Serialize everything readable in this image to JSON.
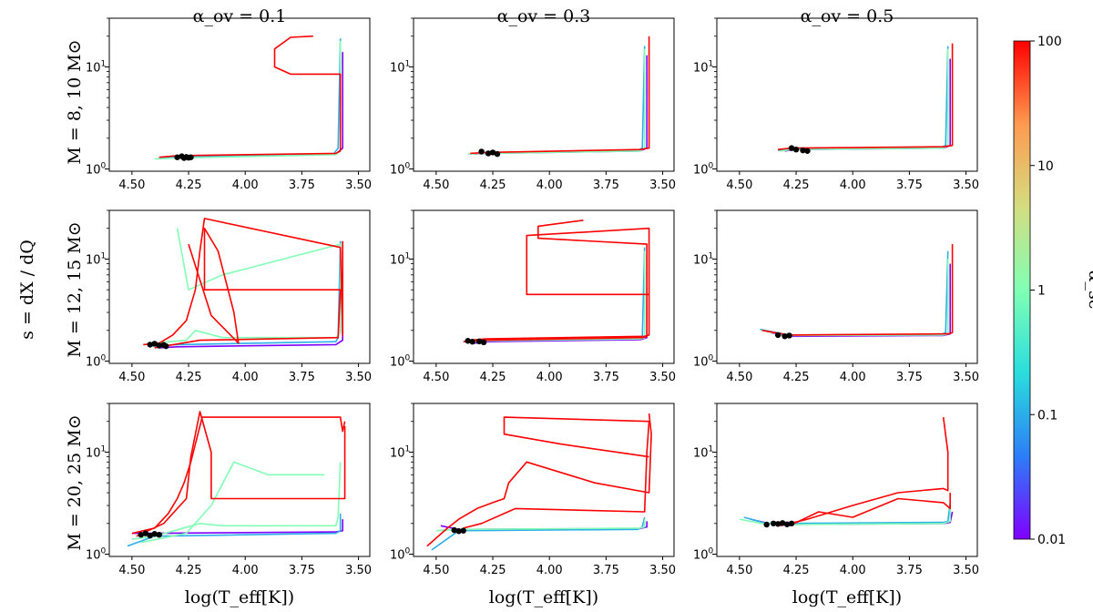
{
  "figure": {
    "column_titles": [
      "α_ov = 0.1",
      "α_ov = 0.3",
      "α_ov = 0.5"
    ],
    "row_labels": [
      "M = 8,  10 M⊙",
      "M = 12,  15 M⊙",
      "M = 20,  25 M⊙"
    ],
    "shared_ylabel": "s = dX / dQ",
    "xlabel": "log(T_eff[K])"
  },
  "colorbar": {
    "label": "α_sc",
    "scale": "log",
    "range": [
      0.01,
      100
    ],
    "ticks": [
      "100",
      "10",
      "1",
      "0.1",
      "0.01"
    ],
    "colors": [
      "#8000ff",
      "#2c7ef7",
      "#2adddd",
      "#80ffb4",
      "#d4dd80",
      "#ff9a4f",
      "#ff0000"
    ]
  },
  "chart_data": {
    "type": "line",
    "xlim": [
      4.6,
      3.45
    ],
    "xticks": [
      "4.50",
      "4.25",
      "4.00",
      "3.75",
      "3.50"
    ],
    "ylim_log": [
      0.95,
      30
    ],
    "yticks": [
      "10^0",
      "10^1"
    ],
    "series_color_key": {
      "red": 100,
      "green": 1,
      "cyan": 0.1,
      "blue": 0.03,
      "violet": 0.01
    },
    "panels": [
      {
        "row": 0,
        "col": 0,
        "series": [
          {
            "alpha_sc": 100,
            "x": [
              4.38,
              4.3,
              3.6,
              3.58,
              3.58,
              3.8,
              3.87,
              3.87,
              3.8,
              3.7
            ],
            "y": [
              1.3,
              1.35,
              1.42,
              1.5,
              8.5,
              8.5,
              10,
              15,
              19.5,
              20
            ]
          },
          {
            "alpha_sc": 1,
            "x": [
              4.4,
              4.3,
              3.6,
              3.58,
              3.58
            ],
            "y": [
              1.25,
              1.28,
              1.38,
              1.5,
              18
            ]
          },
          {
            "alpha_sc": 0.1,
            "x": [
              4.38,
              4.3,
              3.61,
              3.59,
              3.58
            ],
            "y": [
              1.28,
              1.3,
              1.4,
              1.6,
              19
            ]
          },
          {
            "alpha_sc": 0.01,
            "x": [
              4.36,
              4.3,
              3.6,
              3.57,
              3.57
            ],
            "y": [
              1.27,
              1.3,
              1.4,
              1.6,
              14
            ]
          }
        ],
        "endpoints": {
          "x": [
            4.3,
            4.28,
            4.27,
            4.26,
            4.25,
            4.24
          ],
          "y": [
            1.3,
            1.33,
            1.28,
            1.31,
            1.29,
            1.3
          ]
        }
      },
      {
        "row": 0,
        "col": 1,
        "series": [
          {
            "alpha_sc": 100,
            "x": [
              4.35,
              4.28,
              3.6,
              3.56,
              3.56
            ],
            "y": [
              1.42,
              1.45,
              1.55,
              1.6,
              20
            ]
          },
          {
            "alpha_sc": 1,
            "x": [
              4.36,
              4.28,
              3.6,
              3.58,
              3.58
            ],
            "y": [
              1.4,
              1.42,
              1.5,
              1.6,
              15
            ]
          },
          {
            "alpha_sc": 0.1,
            "x": [
              4.34,
              4.28,
              3.61,
              3.59,
              3.58
            ],
            "y": [
              1.42,
              1.44,
              1.52,
              1.6,
              16
            ]
          },
          {
            "alpha_sc": 0.01,
            "x": [
              4.33,
              4.28,
              3.6,
              3.57,
              3.57
            ],
            "y": [
              1.4,
              1.42,
              1.5,
              1.6,
              13
            ]
          }
        ],
        "endpoints": {
          "x": [
            4.3,
            4.27,
            4.25,
            4.23
          ],
          "y": [
            1.48,
            1.42,
            1.45,
            1.4
          ]
        }
      },
      {
        "row": 0,
        "col": 2,
        "series": [
          {
            "alpha_sc": 100,
            "x": [
              4.33,
              4.27,
              3.6,
              3.56,
              3.56
            ],
            "y": [
              1.55,
              1.6,
              1.65,
              1.7,
              17
            ]
          },
          {
            "alpha_sc": 1,
            "x": [
              4.32,
              4.27,
              3.6,
              3.58,
              3.58
            ],
            "y": [
              1.5,
              1.55,
              1.6,
              1.7,
              15
            ]
          },
          {
            "alpha_sc": 0.1,
            "x": [
              4.33,
              4.27,
              3.61,
              3.59,
              3.58
            ],
            "y": [
              1.52,
              1.56,
              1.62,
              1.7,
              16
            ]
          },
          {
            "alpha_sc": 0.01,
            "x": [
              4.3,
              4.26,
              3.6,
              3.57,
              3.57
            ],
            "y": [
              1.5,
              1.55,
              1.6,
              1.7,
              12
            ]
          }
        ],
        "endpoints": {
          "x": [
            4.27,
            4.25,
            4.22,
            4.2
          ],
          "y": [
            1.6,
            1.55,
            1.52,
            1.5
          ]
        }
      },
      {
        "row": 1,
        "col": 0,
        "series": [
          {
            "alpha_sc": 100,
            "x": [
              4.45,
              4.38,
              4.32,
              4.26,
              4.22,
              4.2,
              4.18,
              3.58,
              3.57,
              3.57
            ],
            "y": [
              1.45,
              1.5,
              1.8,
              2.5,
              5,
              12,
              25,
              13,
              1.8,
              15
            ]
          },
          {
            "alpha_sc": 100,
            "x": [
              4.4,
              4.2,
              3.59,
              3.58,
              4.18,
              4.18,
              4.12,
              4.05,
              4.03,
              4.15,
              4.25
            ],
            "y": [
              1.35,
              1.6,
              1.7,
              5,
              5,
              20,
              12,
              3,
              1.5,
              2.8,
              14
            ]
          },
          {
            "alpha_sc": 1,
            "x": [
              4.4,
              4.26,
              4.22,
              4.1,
              3.6,
              3.58,
              3.58,
              4.1,
              4.25,
              4.3
            ],
            "y": [
              1.5,
              1.6,
              2.0,
              1.7,
              1.7,
              1.9,
              14,
              7,
              5,
              20
            ]
          },
          {
            "alpha_sc": 0.1,
            "x": [
              4.42,
              4.3,
              3.6,
              3.59,
              3.58
            ],
            "y": [
              1.4,
              1.45,
              1.55,
              1.7,
              15
            ]
          },
          {
            "alpha_sc": 0.01,
            "x": [
              4.38,
              4.3,
              3.6,
              3.57,
              3.57
            ],
            "y": [
              1.35,
              1.38,
              1.45,
              1.6,
              12
            ]
          }
        ],
        "endpoints": {
          "x": [
            4.42,
            4.4,
            4.38,
            4.36,
            4.35
          ],
          "y": [
            1.45,
            1.48,
            1.42,
            1.44,
            1.4
          ]
        }
      },
      {
        "row": 1,
        "col": 1,
        "series": [
          {
            "alpha_sc": 100,
            "x": [
              4.35,
              4.28,
              3.58,
              3.56,
              3.56,
              4.1,
              4.1,
              3.56
            ],
            "y": [
              1.6,
              1.65,
              1.75,
              1.8,
              20,
              17,
              4.5,
              4.5
            ]
          },
          {
            "alpha_sc": 100,
            "x": [
              4.38,
              4.28,
              3.59,
              3.57,
              3.57,
              4.05,
              4.05,
              3.85
            ],
            "y": [
              1.55,
              1.6,
              1.7,
              1.75,
              14,
              16,
              21,
              24
            ]
          },
          {
            "alpha_sc": 1,
            "x": [
              4.36,
              4.28,
              3.6,
              3.58,
              3.58
            ],
            "y": [
              1.55,
              1.58,
              1.65,
              1.7,
              12
            ]
          },
          {
            "alpha_sc": 0.1,
            "x": [
              4.35,
              4.28,
              3.61,
              3.59,
              3.58
            ],
            "y": [
              1.56,
              1.6,
              1.66,
              1.72,
              13
            ]
          },
          {
            "alpha_sc": 0.01,
            "x": [
              4.33,
              4.28,
              3.6,
              3.57,
              3.57
            ],
            "y": [
              1.5,
              1.55,
              1.62,
              1.7,
              11
            ]
          }
        ],
        "endpoints": {
          "x": [
            4.36,
            4.34,
            4.31,
            4.29
          ],
          "y": [
            1.58,
            1.55,
            1.56,
            1.53
          ]
        }
      },
      {
        "row": 1,
        "col": 2,
        "series": [
          {
            "alpha_sc": 100,
            "x": [
              4.4,
              4.28,
              3.58,
              3.56,
              3.56
            ],
            "y": [
              2.0,
              1.8,
              1.85,
              1.9,
              14
            ]
          },
          {
            "alpha_sc": 1,
            "x": [
              4.38,
              4.28,
              3.6,
              3.58,
              3.58
            ],
            "y": [
              1.95,
              1.78,
              1.8,
              1.85,
              10
            ]
          },
          {
            "alpha_sc": 0.1,
            "x": [
              4.41,
              4.28,
              3.61,
              3.59,
              3.58
            ],
            "y": [
              2.05,
              1.8,
              1.82,
              1.9,
              12
            ]
          },
          {
            "alpha_sc": 0.01,
            "x": [
              4.36,
              4.28,
              3.6,
              3.57,
              3.57
            ],
            "y": [
              1.9,
              1.75,
              1.78,
              1.85,
              9
            ]
          }
        ],
        "endpoints": {
          "x": [
            4.33,
            4.3,
            4.28
          ],
          "y": [
            1.8,
            1.75,
            1.78
          ]
        }
      },
      {
        "row": 2,
        "col": 0,
        "series": [
          {
            "alpha_sc": 100,
            "x": [
              4.5,
              4.4,
              4.34,
              4.3,
              4.27,
              4.24,
              4.22,
              4.2,
              4.19,
              3.58,
              3.57,
              3.56
            ],
            "y": [
              1.6,
              1.8,
              2.5,
              3.5,
              5,
              8,
              12,
              18,
              22,
              22,
              16,
              20
            ]
          },
          {
            "alpha_sc": 100,
            "x": [
              4.48,
              4.36,
              4.26,
              4.24,
              4.2,
              4.15,
              4.15,
              3.56,
              3.56
            ],
            "y": [
              1.5,
              2.0,
              3.5,
              9,
              25,
              10,
              3.5,
              3.5,
              18
            ]
          },
          {
            "alpha_sc": 1,
            "x": [
              4.5,
              4.4,
              4.2,
              4.1,
              3.6,
              3.59,
              3.58
            ],
            "y": [
              1.4,
              1.5,
              2.0,
              1.9,
              1.9,
              2.3,
              8
            ]
          },
          {
            "alpha_sc": 1,
            "x": [
              4.46,
              4.26,
              4.15,
              4.05,
              3.9,
              3.65
            ],
            "y": [
              1.3,
              1.6,
              3,
              8,
              6,
              6
            ]
          },
          {
            "alpha_sc": 0.1,
            "x": [
              4.52,
              4.4,
              3.6,
              3.58,
              3.58
            ],
            "y": [
              1.2,
              1.5,
              1.6,
              1.7,
              2.5
            ]
          },
          {
            "alpha_sc": 0.01,
            "x": [
              4.5,
              4.4,
              3.6,
              3.57,
              3.57
            ],
            "y": [
              1.6,
              1.6,
              1.65,
              1.7,
              2.2
            ]
          }
        ],
        "endpoints": {
          "x": [
            4.46,
            4.44,
            4.42,
            4.4,
            4.38
          ],
          "y": [
            1.55,
            1.6,
            1.52,
            1.58,
            1.55
          ]
        }
      },
      {
        "row": 2,
        "col": 1,
        "series": [
          {
            "alpha_sc": 100,
            "x": [
              4.54,
              4.45,
              4.4,
              4.32,
              4.25,
              4.2,
              4.18,
              4.1,
              3.8,
              3.56,
              3.55,
              3.56
            ],
            "y": [
              1.2,
              1.8,
              2.2,
              2.8,
              3.2,
              3.5,
              5,
              8,
              5,
              4,
              15,
              24
            ]
          },
          {
            "alpha_sc": 100,
            "x": [
              4.38,
              4.3,
              4.15,
              3.58,
              3.57,
              3.56,
              4.2,
              4.2,
              3.95,
              3.56
            ],
            "y": [
              1.8,
              2.0,
              2.8,
              2.6,
              10,
              20,
              22,
              15,
              12,
              9
            ]
          },
          {
            "alpha_sc": 1,
            "x": [
              4.5,
              4.4,
              3.6,
              3.58,
              3.58
            ],
            "y": [
              1.7,
              1.75,
              1.8,
              1.85,
              2.2
            ]
          },
          {
            "alpha_sc": 0.1,
            "x": [
              4.52,
              4.4,
              3.61,
              3.59,
              3.58
            ],
            "y": [
              1.1,
              1.7,
              1.75,
              1.85,
              2.3
            ]
          },
          {
            "alpha_sc": 0.01,
            "x": [
              4.48,
              4.4,
              3.6,
              3.57,
              3.57
            ],
            "y": [
              1.9,
              1.75,
              1.78,
              1.85,
              2.1
            ]
          }
        ],
        "endpoints": {
          "x": [
            4.42,
            4.4,
            4.38
          ],
          "y": [
            1.72,
            1.68,
            1.7
          ]
        }
      },
      {
        "row": 2,
        "col": 2,
        "series": [
          {
            "alpha_sc": 100,
            "x": [
              4.32,
              4.2,
              4.0,
              3.8,
              3.6,
              3.58,
              3.58,
              3.6
            ],
            "y": [
              1.9,
              2.2,
              3.0,
              4.0,
              4.4,
              4.2,
              10,
              22
            ]
          },
          {
            "alpha_sc": 100,
            "x": [
              4.28,
              4.15,
              4.0,
              3.8,
              3.6,
              3.57,
              3.57
            ],
            "y": [
              1.9,
              2.6,
              2.3,
              3.5,
              3.2,
              2.8,
              4
            ]
          },
          {
            "alpha_sc": 1,
            "x": [
              4.5,
              4.4,
              4.3,
              3.6,
              3.57,
              3.57
            ],
            "y": [
              2.2,
              2.0,
              1.95,
              2.0,
              2.1,
              2.8
            ]
          },
          {
            "alpha_sc": 0.1,
            "x": [
              4.48,
              4.38,
              3.6,
              3.58,
              3.57
            ],
            "y": [
              2.3,
              2.0,
              2.05,
              2.1,
              3.2
            ]
          },
          {
            "alpha_sc": 0.01,
            "x": [
              4.45,
              4.35,
              3.6,
              3.57,
              3.56
            ],
            "y": [
              2.2,
              1.95,
              2.0,
              2.05,
              2.6
            ]
          }
        ],
        "endpoints": {
          "x": [
            4.38,
            4.35,
            4.33,
            4.31,
            4.29,
            4.27
          ],
          "y": [
            1.95,
            2.0,
            1.98,
            2.02,
            1.96,
            2.0
          ]
        }
      }
    ]
  }
}
